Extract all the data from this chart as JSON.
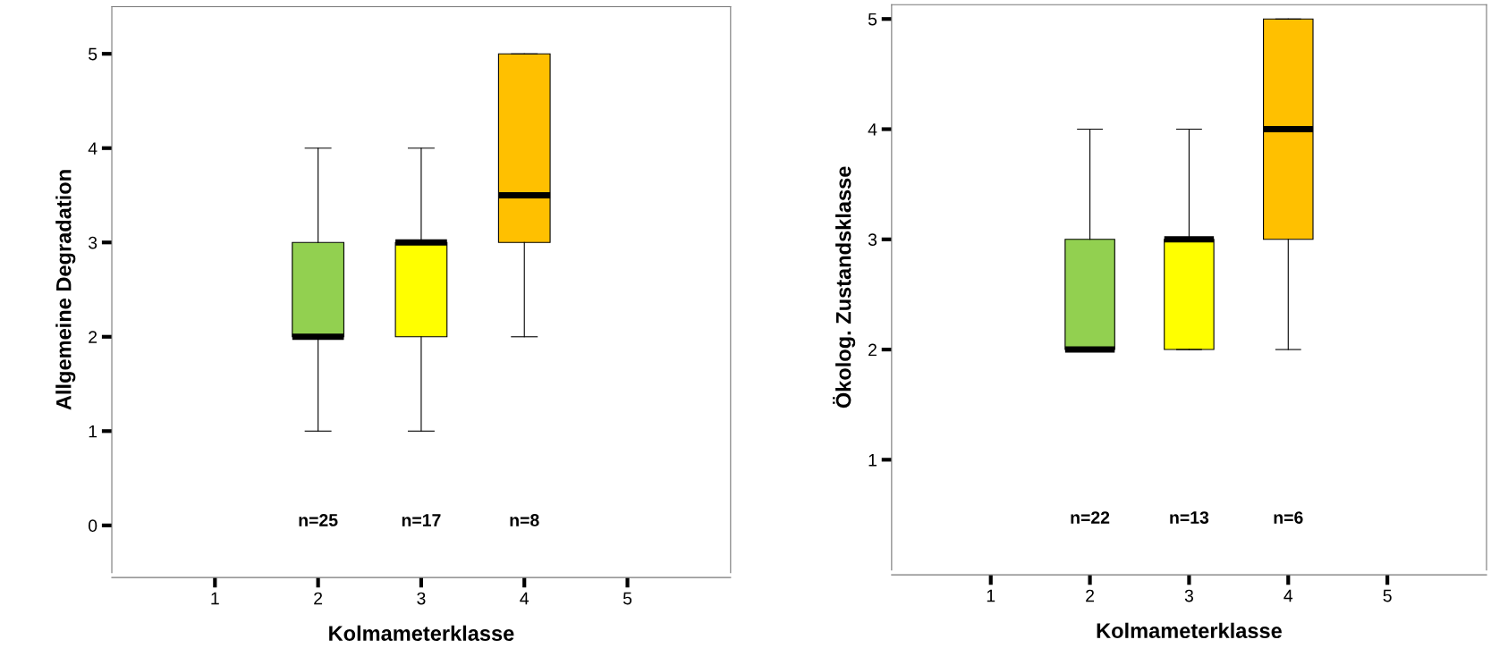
{
  "chart_data": [
    {
      "type": "box",
      "xlabel": "Kolmameterklasse",
      "ylabel": "Allgemeine Degradation",
      "categories": [
        "1",
        "2",
        "3",
        "4",
        "5"
      ],
      "boxes": [
        null,
        {
          "low": 1,
          "q1": 2,
          "median": 2,
          "q3": 3,
          "high": 4
        },
        {
          "low": 1,
          "q1": 2,
          "median": 3,
          "q3": 3,
          "high": 4
        },
        {
          "low": 2,
          "q1": 3,
          "median": 3.5,
          "q3": 5,
          "high": 5
        },
        null
      ],
      "colors": [
        null,
        "#92d050",
        "#ffff00",
        "#ffc000",
        null
      ],
      "ylim": [
        -0.5,
        5.5
      ],
      "yticks": [
        0,
        1,
        2,
        3,
        4,
        5
      ],
      "grid": false,
      "legend": false,
      "annotations": [
        "n=25",
        "n=17",
        "n=8"
      ]
    },
    {
      "type": "box",
      "xlabel": "Kolmameterklasse",
      "ylabel": "Ökolog. Zustandsklasse",
      "categories": [
        "1",
        "2",
        "3",
        "4",
        "5"
      ],
      "boxes": [
        null,
        {
          "low": 2,
          "q1": 2,
          "median": 2,
          "q3": 3,
          "high": 4
        },
        {
          "low": 2,
          "q1": 2,
          "median": 3,
          "q3": 3,
          "high": 4
        },
        {
          "low": 2,
          "q1": 3,
          "median": 4,
          "q3": 5,
          "high": 5
        },
        null
      ],
      "colors": [
        null,
        "#92d050",
        "#ffff00",
        "#ffc000",
        null
      ],
      "ylim": [
        0,
        5.13
      ],
      "yticks": [
        1,
        2,
        3,
        4,
        5
      ],
      "grid": false,
      "legend": false,
      "annotations": [
        "n=22",
        "n=13",
        "n=6"
      ]
    }
  ]
}
